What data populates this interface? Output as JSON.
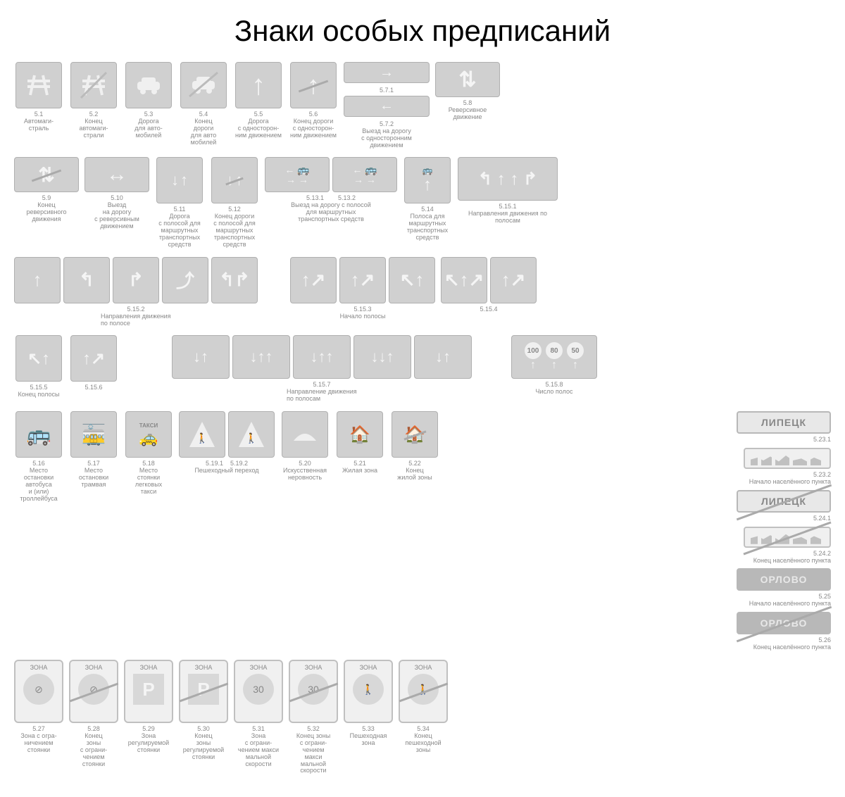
{
  "title": "Знаки особых предписаний",
  "colors": {
    "background": "#ffffff",
    "sign_fill": "#d0d0d0",
    "sign_border": "#b0b0b0",
    "text_muted": "#888888",
    "title_color": "#000000"
  },
  "typography": {
    "title_fontsize": 42,
    "code_fontsize": 9,
    "label_fontsize": 9
  },
  "row1": [
    {
      "code": "5.1",
      "label": "Автомаги-\nстраль",
      "glyph": "motorway"
    },
    {
      "code": "5.2",
      "label": "Конец\nавтомаги-\nстрали",
      "glyph": "motorway-end"
    },
    {
      "code": "5.3",
      "label": "Дорога\nдля авто-\nмобилей",
      "glyph": "car"
    },
    {
      "code": "5.4",
      "label": "Конец\nдороги\nдля авто\nмобилей",
      "glyph": "car-end"
    },
    {
      "code": "5.5",
      "label": "Дорога\nс односторон-\nним движением",
      "glyph": "arrow-up"
    },
    {
      "code": "5.6",
      "label": "Конец дороги\nс односторон-\nним движением",
      "glyph": "arrow-up-end"
    },
    {
      "code": "5.7.1",
      "code2": "5.7.2",
      "label": "Выезд на дорогу\nс односторонним\nдвижением",
      "glyph": "arrows-rl"
    },
    {
      "code": "5.8",
      "label": "Реверсивное\nдвижение",
      "glyph": "reversible"
    }
  ],
  "row2": [
    {
      "code": "5.9",
      "label": "Конец\nреверсивного\nдвижения",
      "glyph": "rev-end"
    },
    {
      "code": "5.10",
      "label": "Выезд\nна дорогу\nс реверсивным\nдвижением",
      "glyph": "rev-enter"
    },
    {
      "code": "5.11",
      "label": "Дорога\nс полосой для\nмаршрутных\nтранспортных\nсредств",
      "glyph": "bus-lane"
    },
    {
      "code": "5.12",
      "label": "Конец дороги\nс полосой для\nмаршрутных\nтранспортных\nсредств",
      "glyph": "bus-lane-end"
    },
    {
      "code": "5.13.1",
      "code2": "5.13.2",
      "label": "Выезд на дорогу с полосой\nдля маршрутных\nтранспортных средств",
      "glyph": "bus-enter",
      "wide": true
    },
    {
      "code": "5.14",
      "label": "Полоса для\nмаршрутных\nтранспортных\nсредств",
      "glyph": "bus-lane-single"
    },
    {
      "code": "5.15.1",
      "label": "Направления движения\nпо полосам",
      "glyph": "lanes-dir",
      "wide": true
    }
  ],
  "row3_left": {
    "code": "5.15.2",
    "label": "Направления движения по полосе",
    "count": 5
  },
  "row3_mid": {
    "code": "5.15.3",
    "label": "Начало полосы",
    "count": 3
  },
  "row3_right": {
    "code": "5.15.4",
    "label": "",
    "count": 2
  },
  "row4": [
    {
      "code": "5.15.5",
      "label": "Конец полосы"
    },
    {
      "code": "5.15.6",
      "label": ""
    },
    {
      "code": "5.15.7",
      "label": "Направление движения по полосам",
      "count": 5,
      "wide": true
    },
    {
      "code": "5.15.8",
      "label": "Число полос",
      "wide": true,
      "speeds": [
        "100",
        "80",
        "50"
      ]
    }
  ],
  "row5": [
    {
      "code": "5.16",
      "label": "Место\nостановки\nавтобуса\nи (или)\nтроллейбуса",
      "glyph": "bus-stop"
    },
    {
      "code": "5.17",
      "label": "Место\nостановки\nтрамвая",
      "glyph": "tram-stop"
    },
    {
      "code": "5.18",
      "label": "Место\nстоянки\nлегковых\nтакси",
      "glyph": "taxi",
      "inner": "ТАКСИ"
    },
    {
      "code": "5.19.1",
      "code2": "5.19.2",
      "label": "Пешеходный переход",
      "glyph": "crosswalk",
      "count": 2
    },
    {
      "code": "5.20",
      "label": "Искусственная\nнеровность",
      "glyph": "bump"
    },
    {
      "code": "5.21",
      "label": "Жилая зона",
      "glyph": "residential"
    },
    {
      "code": "5.22",
      "label": "Конец\nжилой зоны",
      "glyph": "residential-end"
    }
  ],
  "row5_right": [
    {
      "code": "5.23.1",
      "text": "ЛИПЕЦК"
    },
    {
      "code": "5.23.2",
      "label": "Начало населённого пункта",
      "skyline": true
    },
    {
      "code": "5.24.1",
      "text": "ЛИПЕЦК",
      "strike": true
    },
    {
      "code": "5.24.2",
      "label": "Конец населённого пункта",
      "skyline": true,
      "strike": true
    },
    {
      "code": "5.25",
      "label": "Начало населённого пункта",
      "text": "ОРЛОВО",
      "dark": true
    },
    {
      "code": "5.26",
      "label": "Конец населённого пункта",
      "text": "ОРЛОВО",
      "dark": true,
      "strike": true
    }
  ],
  "row6": [
    {
      "code": "5.27",
      "label": "Зона с огра-\nничением\nстоянки",
      "zone": "ЗОНА",
      "inner": "⊘"
    },
    {
      "code": "5.28",
      "label": "Конец\nзоны\nс ограни-\nчением\nстоянки",
      "zone": "ЗОНА",
      "inner": "⊘",
      "strike": true
    },
    {
      "code": "5.29",
      "label": "Зона\nрегулируемой\nстоянки",
      "zone": "ЗОНА",
      "inner": "P",
      "square": true
    },
    {
      "code": "5.30",
      "label": "Конец\nзоны\nрегулируемой\nстоянки",
      "zone": "ЗОНА",
      "inner": "P",
      "square": true,
      "strike": true
    },
    {
      "code": "5.31",
      "label": "Зона\nс ограни-\nчением макси\nмальной\nскорости",
      "zone": "ЗОНА",
      "inner": "30"
    },
    {
      "code": "5.32",
      "label": "Конец зоны\nс ограни-\nчением\nмакси\nмальной\nскорости",
      "zone": "ЗОНА",
      "inner": "30",
      "strike": true
    },
    {
      "code": "5.33",
      "label": "Пешеходная\nзона",
      "zone": "ЗОНА",
      "inner": "🚶"
    },
    {
      "code": "5.34",
      "label": "Конец\nпешеходной\nзоны",
      "zone": "ЗОНА",
      "inner": "🚶",
      "strike": true
    }
  ]
}
